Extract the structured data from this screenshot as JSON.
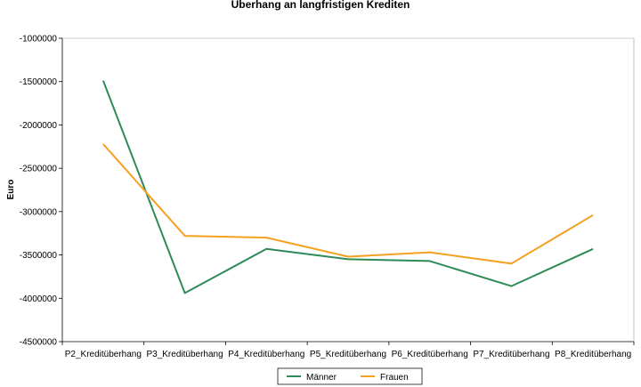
{
  "chart_data": {
    "type": "line",
    "title": "Überhang an langfristigen Krediten",
    "xlabel": "",
    "ylabel": "Euro",
    "categories": [
      "P2_Kreditüberhang",
      "P3_Kreditüberhang",
      "P4_Kreditüberhang",
      "P5_Kreditüberhang",
      "P6_Kreditüberhang",
      "P7_Kreditüberhang",
      "P8_Kreditüberhang"
    ],
    "series": [
      {
        "name": "Männer",
        "color": "#2e8b57",
        "values": [
          -1490000,
          -3940000,
          -3430000,
          -3550000,
          -3570000,
          -3860000,
          -3430000
        ]
      },
      {
        "name": "Frauen",
        "color": "#f4a020",
        "values": [
          -2220000,
          -3280000,
          -3300000,
          -3520000,
          -3470000,
          -3600000,
          -3040000
        ]
      }
    ],
    "ylim": [
      -4500000,
      -1000000
    ],
    "yticks": [
      "-1000000",
      "-1500000",
      "-2000000",
      "-2500000",
      "-3000000",
      "-3500000",
      "-4000000",
      "-4500000"
    ],
    "ytick_values": [
      -1000000,
      -1500000,
      -2000000,
      -2500000,
      -3000000,
      -3500000,
      -4000000,
      -4500000
    ],
    "grid": false,
    "legend": "bottom-center"
  }
}
